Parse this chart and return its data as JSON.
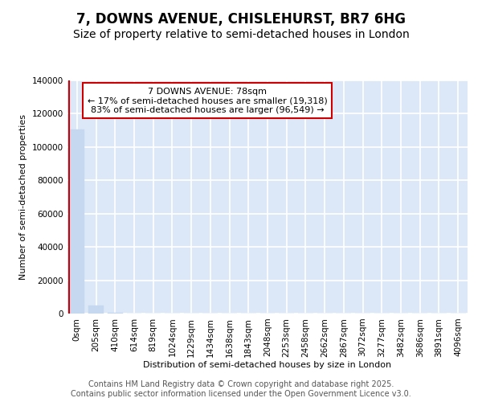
{
  "title_line1": "7, DOWNS AVENUE, CHISLEHURST, BR7 6HG",
  "title_line2": "Size of property relative to semi-detached houses in London",
  "xlabel": "Distribution of semi-detached houses by size in London",
  "ylabel": "Number of semi-detached properties",
  "property_label": "7 DOWNS AVENUE: 78sqm",
  "pct_smaller": 17,
  "n_smaller": 19318,
  "pct_larger": 83,
  "n_larger": 96549,
  "bar_values": [
    110500,
    5000,
    700,
    200,
    80,
    40,
    20,
    12,
    8,
    5,
    4,
    3,
    2,
    2,
    1,
    1,
    1,
    1,
    0,
    0,
    0
  ],
  "bar_labels": [
    "0sqm",
    "205sqm",
    "410sqm",
    "614sqm",
    "819sqm",
    "1024sqm",
    "1229sqm",
    "1434sqm",
    "1638sqm",
    "1843sqm",
    "2048sqm",
    "2253sqm",
    "2458sqm",
    "2662sqm",
    "2867sqm",
    "3072sqm",
    "3277sqm",
    "3482sqm",
    "3686sqm",
    "3891sqm",
    "4096sqm"
  ],
  "bar_color": "#c5d8f0",
  "bar_edge_color": "#c5d8f0",
  "vline_color": "#cc0000",
  "annotation_box_edge_color": "#cc0000",
  "bg_color": "#ffffff",
  "axes_bg_color": "#dce8f8",
  "grid_color": "#ffffff",
  "ylim": [
    0,
    140000
  ],
  "yticks": [
    0,
    20000,
    40000,
    60000,
    80000,
    100000,
    120000,
    140000
  ],
  "footer_line1": "Contains HM Land Registry data © Crown copyright and database right 2025.",
  "footer_line2": "Contains public sector information licensed under the Open Government Licence v3.0.",
  "title_fontsize": 12,
  "subtitle_fontsize": 10,
  "axis_label_fontsize": 8,
  "tick_fontsize": 7.5,
  "annotation_fontsize": 8,
  "footer_fontsize": 7
}
